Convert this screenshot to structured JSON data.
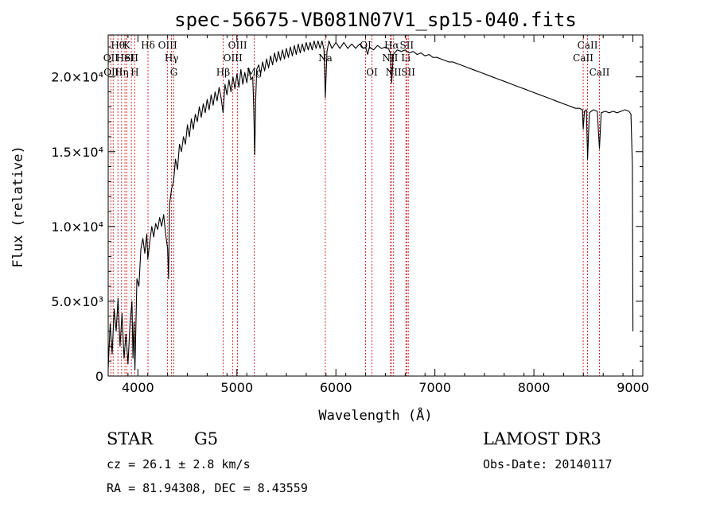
{
  "chart_data": {
    "type": "line",
    "title": "spec-56675-VB081N07V1_sp15-040.fits",
    "xlabel": "Wavelength (Å)",
    "ylabel": "Flux (relative)",
    "xlim": [
      3700,
      9100
    ],
    "ylim": [
      0,
      22800
    ],
    "x_ticks": [
      4000,
      5000,
      6000,
      7000,
      8000,
      9000
    ],
    "y_ticks": [
      {
        "value": 0,
        "label": "0"
      },
      {
        "value": 5000,
        "label": "5.0×10³"
      },
      {
        "value": 10000,
        "label": "1.0×10⁴"
      },
      {
        "value": 15000,
        "label": "1.5×10⁴"
      },
      {
        "value": 20000,
        "label": "2.0×10⁴"
      }
    ],
    "series": [
      {
        "name": "flux",
        "points": [
          [
            3700,
            500
          ],
          [
            3720,
            3500
          ],
          [
            3740,
            1500
          ],
          [
            3760,
            4500
          ],
          [
            3780,
            3000
          ],
          [
            3800,
            5200
          ],
          [
            3820,
            2000
          ],
          [
            3840,
            4200
          ],
          [
            3860,
            1200
          ],
          [
            3880,
            2800
          ],
          [
            3900,
            800
          ],
          [
            3920,
            3500
          ],
          [
            3940,
            5000
          ],
          [
            3950,
            1200
          ],
          [
            3960,
            3600
          ],
          [
            3970,
            400
          ],
          [
            3990,
            6500
          ],
          [
            4010,
            6000
          ],
          [
            4030,
            8500
          ],
          [
            4050,
            9200
          ],
          [
            4070,
            8200
          ],
          [
            4090,
            9500
          ],
          [
            4100,
            7800
          ],
          [
            4120,
            9000
          ],
          [
            4140,
            10000
          ],
          [
            4160,
            9300
          ],
          [
            4180,
            10200
          ],
          [
            4200,
            9800
          ],
          [
            4220,
            10600
          ],
          [
            4240,
            10000
          ],
          [
            4260,
            10800
          ],
          [
            4280,
            9500
          ],
          [
            4300,
            8500
          ],
          [
            4310,
            6500
          ],
          [
            4320,
            11500
          ],
          [
            4340,
            12500
          ],
          [
            4360,
            13000
          ],
          [
            4380,
            14500
          ],
          [
            4400,
            13800
          ],
          [
            4420,
            15500
          ],
          [
            4440,
            15000
          ],
          [
            4460,
            16000
          ],
          [
            4480,
            15500
          ],
          [
            4500,
            16800
          ],
          [
            4520,
            16000
          ],
          [
            4540,
            17200
          ],
          [
            4560,
            16500
          ],
          [
            4580,
            17500
          ],
          [
            4600,
            17000
          ],
          [
            4620,
            18000
          ],
          [
            4640,
            17300
          ],
          [
            4660,
            18200
          ],
          [
            4680,
            17600
          ],
          [
            4700,
            18500
          ],
          [
            4720,
            17800
          ],
          [
            4740,
            18800
          ],
          [
            4760,
            18100
          ],
          [
            4780,
            19000
          ],
          [
            4800,
            18400
          ],
          [
            4820,
            19300
          ],
          [
            4840,
            18600
          ],
          [
            4860,
            17600
          ],
          [
            4880,
            19500
          ],
          [
            4900,
            18800
          ],
          [
            4920,
            19800
          ],
          [
            4940,
            19000
          ],
          [
            4960,
            20000
          ],
          [
            4980,
            19200
          ],
          [
            5000,
            20200
          ],
          [
            5020,
            19300
          ],
          [
            5040,
            20500
          ],
          [
            5060,
            19500
          ],
          [
            5080,
            20300
          ],
          [
            5100,
            19600
          ],
          [
            5120,
            20600
          ],
          [
            5140,
            19800
          ],
          [
            5160,
            20000
          ],
          [
            5170,
            18000
          ],
          [
            5180,
            14800
          ],
          [
            5190,
            18500
          ],
          [
            5200,
            20500
          ],
          [
            5220,
            20800
          ],
          [
            5240,
            20200
          ],
          [
            5260,
            21000
          ],
          [
            5280,
            20400
          ],
          [
            5300,
            21200
          ],
          [
            5320,
            20600
          ],
          [
            5340,
            21400
          ],
          [
            5360,
            20800
          ],
          [
            5380,
            21600
          ],
          [
            5400,
            21000
          ],
          [
            5420,
            21700
          ],
          [
            5440,
            21100
          ],
          [
            5460,
            21800
          ],
          [
            5480,
            21200
          ],
          [
            5500,
            21900
          ],
          [
            5520,
            21300
          ],
          [
            5540,
            22000
          ],
          [
            5560,
            21400
          ],
          [
            5580,
            22100
          ],
          [
            5600,
            21500
          ],
          [
            5620,
            22200
          ],
          [
            5640,
            21600
          ],
          [
            5660,
            22200
          ],
          [
            5680,
            21700
          ],
          [
            5700,
            22300
          ],
          [
            5720,
            21800
          ],
          [
            5740,
            22300
          ],
          [
            5760,
            21800
          ],
          [
            5780,
            22400
          ],
          [
            5800,
            21900
          ],
          [
            5820,
            22400
          ],
          [
            5840,
            21900
          ],
          [
            5860,
            22400
          ],
          [
            5880,
            21800
          ],
          [
            5893,
            18600
          ],
          [
            5910,
            21700
          ],
          [
            5930,
            22400
          ],
          [
            5960,
            21900
          ],
          [
            6000,
            22300
          ],
          [
            6040,
            21900
          ],
          [
            6080,
            22300
          ],
          [
            6120,
            21900
          ],
          [
            6160,
            22200
          ],
          [
            6200,
            21900
          ],
          [
            6240,
            22200
          ],
          [
            6280,
            21900
          ],
          [
            6300,
            22000
          ],
          [
            6320,
            21500
          ],
          [
            6340,
            22000
          ],
          [
            6380,
            21800
          ],
          [
            6420,
            22100
          ],
          [
            6460,
            21900
          ],
          [
            6500,
            22000
          ],
          [
            6530,
            21900
          ],
          [
            6550,
            21600
          ],
          [
            6563,
            19600
          ],
          [
            6580,
            21500
          ],
          [
            6620,
            21800
          ],
          [
            6660,
            21700
          ],
          [
            6700,
            21800
          ],
          [
            6740,
            21600
          ],
          [
            6780,
            21700
          ],
          [
            6820,
            21500
          ],
          [
            6860,
            21600
          ],
          [
            6900,
            21400
          ],
          [
            6940,
            21500
          ],
          [
            6980,
            21300
          ],
          [
            7020,
            21300
          ],
          [
            7060,
            21200
          ],
          [
            7100,
            21100
          ],
          [
            7140,
            21000
          ],
          [
            7180,
            21000
          ],
          [
            7220,
            20900
          ],
          [
            7260,
            20800
          ],
          [
            7300,
            20700
          ],
          [
            7340,
            20600
          ],
          [
            7380,
            20500
          ],
          [
            7420,
            20400
          ],
          [
            7460,
            20300
          ],
          [
            7500,
            20200
          ],
          [
            7540,
            20100
          ],
          [
            7580,
            20000
          ],
          [
            7620,
            19900
          ],
          [
            7660,
            19800
          ],
          [
            7700,
            19700
          ],
          [
            7740,
            19600
          ],
          [
            7780,
            19500
          ],
          [
            7820,
            19400
          ],
          [
            7860,
            19300
          ],
          [
            7900,
            19200
          ],
          [
            7940,
            19100
          ],
          [
            7980,
            19000
          ],
          [
            8020,
            18900
          ],
          [
            8060,
            18800
          ],
          [
            8100,
            18700
          ],
          [
            8140,
            18600
          ],
          [
            8180,
            18500
          ],
          [
            8220,
            18400
          ],
          [
            8260,
            18300
          ],
          [
            8300,
            18200
          ],
          [
            8340,
            18100
          ],
          [
            8380,
            18000
          ],
          [
            8420,
            17900
          ],
          [
            8460,
            17900
          ],
          [
            8490,
            17800
          ],
          [
            8498,
            16500
          ],
          [
            8510,
            17700
          ],
          [
            8530,
            17800
          ],
          [
            8542,
            14500
          ],
          [
            8560,
            17600
          ],
          [
            8600,
            17800
          ],
          [
            8640,
            17700
          ],
          [
            8662,
            15200
          ],
          [
            8680,
            17600
          ],
          [
            8720,
            17700
          ],
          [
            8760,
            17600
          ],
          [
            8800,
            17700
          ],
          [
            8840,
            17600
          ],
          [
            8880,
            17700
          ],
          [
            8920,
            17800
          ],
          [
            8960,
            17700
          ],
          [
            8980,
            17500
          ],
          [
            8995,
            14000
          ],
          [
            9000,
            3000
          ]
        ]
      }
    ],
    "lines": [
      {
        "wavelength": 3727,
        "label": "OII",
        "tier": 2
      },
      {
        "wavelength": 3750,
        "label": "OIII",
        "tier": 3
      },
      {
        "wavelength": 3798,
        "label": "Hθ",
        "tier": 1
      },
      {
        "wavelength": 3835,
        "label": "Hη",
        "tier": 3
      },
      {
        "wavelength": 3869,
        "label": "HeI",
        "tier": 2
      },
      {
        "wavelength": 3889,
        "label": "K",
        "tier": 1
      },
      {
        "wavelength": 3934,
        "label": "SII",
        "tier": 2
      },
      {
        "wavelength": 3968,
        "label": "H",
        "tier": 3
      },
      {
        "wavelength": 4102,
        "label": "Hδ",
        "tier": 1
      },
      {
        "wavelength": 4300,
        "label": "OIII",
        "tier": 1
      },
      {
        "wavelength": 4340,
        "label": "Hγ",
        "tier": 2
      },
      {
        "wavelength": 4363,
        "label": "G",
        "tier": 3
      },
      {
        "wavelength": 4861,
        "label": "Hβ",
        "tier": 3
      },
      {
        "wavelength": 4959,
        "label": "OIII",
        "tier": 2
      },
      {
        "wavelength": 5007,
        "label": "OIII",
        "tier": 1
      },
      {
        "wavelength": 5175,
        "label": "Mg",
        "tier": 3
      },
      {
        "wavelength": 5893,
        "label": "Na",
        "tier": 2
      },
      {
        "wavelength": 6300,
        "label": "OI",
        "tier": 1
      },
      {
        "wavelength": 6364,
        "label": "OI",
        "tier": 3
      },
      {
        "wavelength": 6548,
        "label": "NII",
        "tier": 2
      },
      {
        "wavelength": 6563,
        "label": "Hα",
        "tier": 1
      },
      {
        "wavelength": 6583,
        "label": "NII",
        "tier": 3
      },
      {
        "wavelength": 6707,
        "label": "Li",
        "tier": 2
      },
      {
        "wavelength": 6716,
        "label": "SII",
        "tier": 1
      },
      {
        "wavelength": 6731,
        "label": "SII",
        "tier": 3
      },
      {
        "wavelength": 8498,
        "label": "CaII",
        "tier": 2
      },
      {
        "wavelength": 8542,
        "label": "CaII",
        "tier": 1
      },
      {
        "wavelength": 8662,
        "label": "CaII",
        "tier": 3
      }
    ]
  },
  "info": {
    "object_type": "STAR",
    "subclass": "G5",
    "survey": "LAMOST DR3",
    "cz": "cz = 26.1 ± 2.8 km/s",
    "obs_date": "Obs-Date: 20140117",
    "coords": "RA =  81.94308, DEC =   8.43559"
  }
}
